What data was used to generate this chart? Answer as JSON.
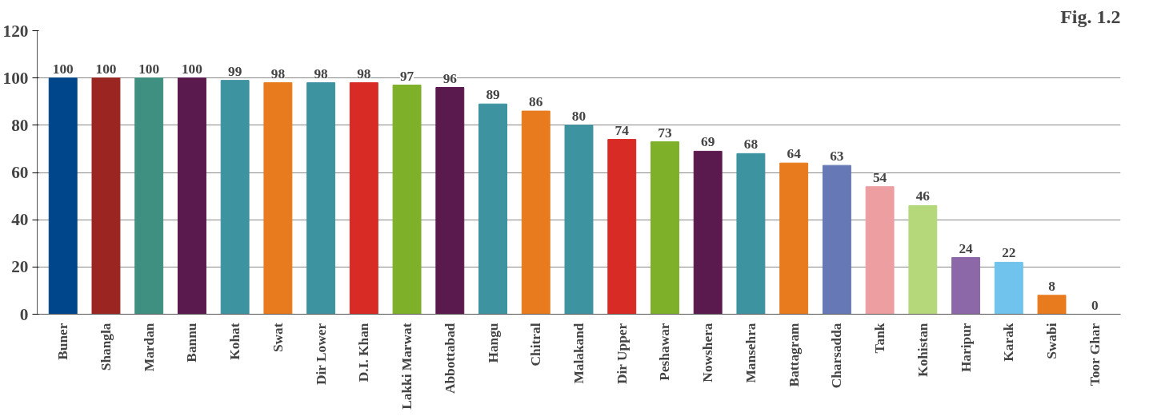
{
  "chart_data": {
    "type": "bar",
    "categories": [
      "Buner",
      "Shangla",
      "Mardan",
      "Bannu",
      "Kohat",
      "Swat",
      "Dir Lower",
      "D.I. Khan",
      "Lakki Marwat",
      "Abbottabad",
      "Hangu",
      "Chitral",
      "Malakand",
      "Dir Upper",
      "Peshawar",
      "Nowshera",
      "Mansehra",
      "Battagram",
      "Charsadda",
      "Tank",
      "Kohistan",
      "Haripur",
      "Karak",
      "Swabi",
      "Toor Ghar"
    ],
    "values": [
      100,
      100,
      100,
      100,
      99,
      98,
      98,
      98,
      97,
      96,
      89,
      86,
      80,
      74,
      73,
      69,
      68,
      64,
      63,
      54,
      46,
      24,
      22,
      8,
      0
    ],
    "colors": [
      "#00468b",
      "#9b2520",
      "#3f9080",
      "#5a1a4e",
      "#3d93a0",
      "#e87b1e",
      "#3d93a0",
      "#d92b25",
      "#7fb02a",
      "#5a1a4e",
      "#3d93a0",
      "#e87b1e",
      "#3d93a0",
      "#d92b25",
      "#7fb02a",
      "#5a1a4e",
      "#3d93a0",
      "#e87b1e",
      "#6678b5",
      "#ec9ea0",
      "#b5d87a",
      "#8c68a8",
      "#6fc3ec",
      "#e87b1e",
      "#e87b1e"
    ],
    "ylim": [
      0,
      120
    ],
    "yticks": [
      0,
      20,
      40,
      60,
      80,
      100,
      120
    ],
    "grid": "y",
    "data_labels": true,
    "annotations": [
      "Fig. 1.2"
    ]
  }
}
